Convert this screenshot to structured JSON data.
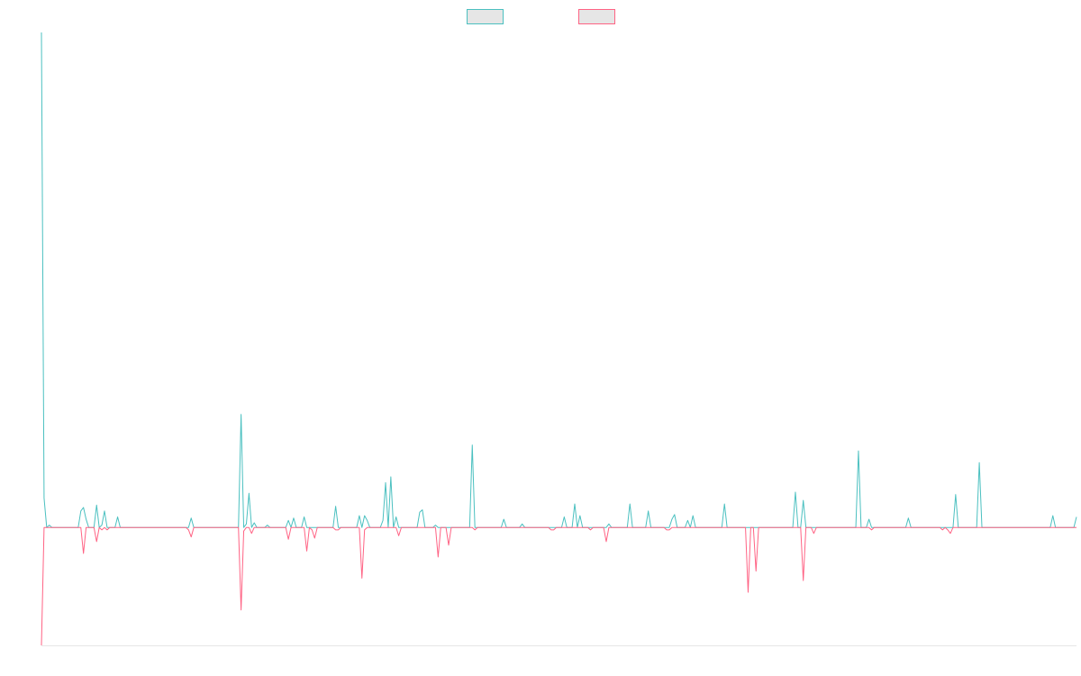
{
  "colors": {
    "series_a": "#4bc0c0",
    "series_b": "#ff6384",
    "legend_fill": "#e6e6e6",
    "axis": "#e6e6e6"
  },
  "chart_data": {
    "type": "line",
    "title": "",
    "xlabel": "",
    "ylabel": "",
    "ylim": [
      -100,
      420
    ],
    "grid": false,
    "legend_position": "top-center",
    "series": [
      {
        "color": "#4bc0c0",
        "values": [
          420,
          25,
          0,
          2,
          0,
          0,
          0,
          0,
          0,
          0,
          0,
          0,
          0,
          0,
          0,
          14,
          17,
          7,
          0,
          0,
          0,
          19,
          0,
          2,
          14,
          0,
          0,
          0,
          0,
          9,
          0,
          0,
          0,
          0,
          0,
          0,
          0,
          0,
          0,
          0,
          0,
          0,
          0,
          0,
          0,
          0,
          0,
          0,
          0,
          0,
          0,
          0,
          0,
          0,
          0,
          0,
          0,
          8,
          0,
          0,
          0,
          0,
          0,
          0,
          0,
          0,
          0,
          0,
          0,
          0,
          0,
          0,
          0,
          0,
          0,
          0,
          96,
          0,
          3,
          29,
          0,
          4,
          0,
          0,
          0,
          0,
          2,
          0,
          0,
          0,
          0,
          0,
          0,
          0,
          6,
          0,
          8,
          0,
          0,
          0,
          9,
          0,
          0,
          0,
          0,
          0,
          0,
          0,
          0,
          0,
          0,
          0,
          18,
          0,
          0,
          0,
          0,
          0,
          0,
          0,
          0,
          10,
          0,
          10,
          6,
          0,
          0,
          0,
          0,
          0,
          6,
          38,
          0,
          43,
          0,
          9,
          0,
          0,
          0,
          0,
          0,
          0,
          0,
          0,
          13,
          15,
          0,
          0,
          0,
          0,
          2,
          0,
          0,
          0,
          0,
          0,
          0,
          0,
          0,
          0,
          0,
          0,
          0,
          0,
          70,
          0,
          0,
          0,
          0,
          0,
          0,
          0,
          0,
          0,
          0,
          0,
          7,
          0,
          0,
          0,
          0,
          0,
          0,
          3,
          0,
          0,
          0,
          0,
          0,
          0,
          0,
          0,
          0,
          0,
          0,
          0,
          0,
          0,
          0,
          9,
          0,
          0,
          0,
          20,
          0,
          10,
          0,
          0,
          0,
          0,
          0,
          0,
          0,
          0,
          0,
          0,
          3,
          0,
          0,
          0,
          0,
          0,
          0,
          0,
          20,
          0,
          0,
          0,
          0,
          0,
          0,
          14,
          0,
          0,
          0,
          0,
          0,
          0,
          0,
          0,
          7,
          11,
          0,
          0,
          0,
          0,
          6,
          0,
          10,
          0,
          0,
          0,
          0,
          0,
          0,
          0,
          0,
          0,
          0,
          0,
          20,
          0,
          0,
          0,
          0,
          0,
          0,
          0,
          0,
          0,
          0,
          0,
          0,
          0,
          0,
          0,
          0,
          0,
          0,
          0,
          0,
          0,
          0,
          0,
          0,
          0,
          0,
          30,
          0,
          0,
          23,
          0,
          0,
          0,
          0,
          0,
          0,
          0,
          0,
          0,
          0,
          0,
          0,
          0,
          0,
          0,
          0,
          0,
          0,
          0,
          0,
          65,
          0,
          0,
          0,
          7,
          0,
          0,
          0,
          0,
          0,
          0,
          0,
          0,
          0,
          0,
          0,
          0,
          0,
          0,
          8,
          0,
          0,
          0,
          0,
          0,
          0,
          0,
          0,
          0,
          0,
          0,
          0,
          0,
          0,
          0,
          0,
          0,
          28,
          0,
          0,
          0,
          0,
          0,
          0,
          0,
          0,
          55,
          0,
          0,
          0,
          0,
          0,
          0,
          0,
          0,
          0,
          0,
          0,
          0,
          0,
          0,
          0,
          0,
          0,
          0,
          0,
          0,
          0,
          0,
          0,
          0,
          0,
          0,
          0,
          10,
          0,
          0,
          0,
          0,
          0,
          0,
          0,
          0,
          9
        ],
        "name": ""
      },
      {
        "color": "#ff6384",
        "values": [
          -100,
          0,
          0,
          0,
          0,
          0,
          0,
          0,
          0,
          0,
          0,
          0,
          0,
          0,
          0,
          0,
          -22,
          0,
          0,
          0,
          0,
          -12,
          0,
          -2,
          0,
          -2,
          0,
          0,
          0,
          0,
          0,
          0,
          0,
          0,
          0,
          0,
          0,
          0,
          0,
          0,
          0,
          0,
          0,
          0,
          0,
          0,
          0,
          0,
          0,
          0,
          0,
          0,
          0,
          0,
          0,
          0,
          -2,
          -8,
          0,
          0,
          0,
          0,
          0,
          0,
          0,
          0,
          0,
          0,
          0,
          0,
          0,
          0,
          0,
          0,
          0,
          0,
          -70,
          -3,
          0,
          0,
          -5,
          0,
          0,
          0,
          0,
          0,
          0,
          0,
          0,
          0,
          0,
          0,
          0,
          0,
          -10,
          0,
          0,
          0,
          0,
          0,
          0,
          -20,
          0,
          -2,
          -9,
          0,
          0,
          0,
          0,
          0,
          0,
          0,
          -2,
          -2,
          0,
          0,
          0,
          0,
          0,
          0,
          0,
          0,
          -43,
          -2,
          0,
          0,
          0,
          0,
          0,
          0,
          0,
          0,
          0,
          0,
          0,
          0,
          -7,
          0,
          0,
          0,
          0,
          0,
          0,
          0,
          0,
          0,
          0,
          0,
          0,
          0,
          0,
          -25,
          0,
          0,
          0,
          -15,
          0,
          0,
          0,
          0,
          0,
          0,
          0,
          0,
          0,
          -2,
          0,
          0,
          0,
          0,
          0,
          0,
          0,
          0,
          0,
          0,
          0,
          0,
          0,
          0,
          0,
          0,
          0,
          0,
          0,
          0,
          0,
          0,
          0,
          0,
          0,
          0,
          0,
          0,
          -2,
          -2,
          0,
          0,
          0,
          0,
          0,
          0,
          0,
          0,
          0,
          0,
          0,
          0,
          0,
          -2,
          0,
          0,
          0,
          0,
          0,
          -12,
          0,
          0,
          0,
          0,
          0,
          0,
          0,
          0,
          0,
          0,
          0,
          0,
          0,
          0,
          0,
          0,
          0,
          0,
          0,
          0,
          0,
          0,
          -2,
          -2,
          0,
          0,
          0,
          0,
          0,
          0,
          0,
          0,
          0,
          0,
          0,
          0,
          0,
          0,
          0,
          0,
          0,
          0,
          0,
          0,
          0,
          0,
          0,
          0,
          0,
          0,
          0,
          0,
          0,
          -55,
          0,
          0,
          -37,
          0,
          0,
          0,
          0,
          0,
          0,
          0,
          0,
          0,
          0,
          0,
          0,
          0,
          0,
          0,
          0,
          0,
          -45,
          0,
          0,
          0,
          -5,
          0,
          0,
          0,
          0,
          0,
          0,
          0,
          0,
          0,
          0,
          0,
          0,
          0,
          0,
          0,
          0,
          0,
          0,
          0,
          0,
          0,
          -2,
          0,
          0,
          0,
          0,
          0,
          0,
          0,
          0,
          0,
          0,
          0,
          0,
          0,
          0,
          0,
          0,
          0,
          0,
          0,
          0,
          0,
          0,
          0,
          0,
          0,
          0,
          -2,
          0,
          -2,
          -5,
          0,
          0,
          0,
          0,
          0,
          0,
          0,
          0,
          0,
          0,
          0,
          0,
          0,
          0,
          0,
          0,
          0,
          0,
          0,
          0,
          0,
          0,
          0,
          0,
          0,
          0,
          0,
          0,
          0,
          0,
          0,
          0,
          0,
          0,
          0,
          0,
          0,
          0,
          0,
          0,
          0,
          0,
          0,
          0,
          0,
          0,
          0,
          0
        ],
        "name": ""
      }
    ]
  }
}
